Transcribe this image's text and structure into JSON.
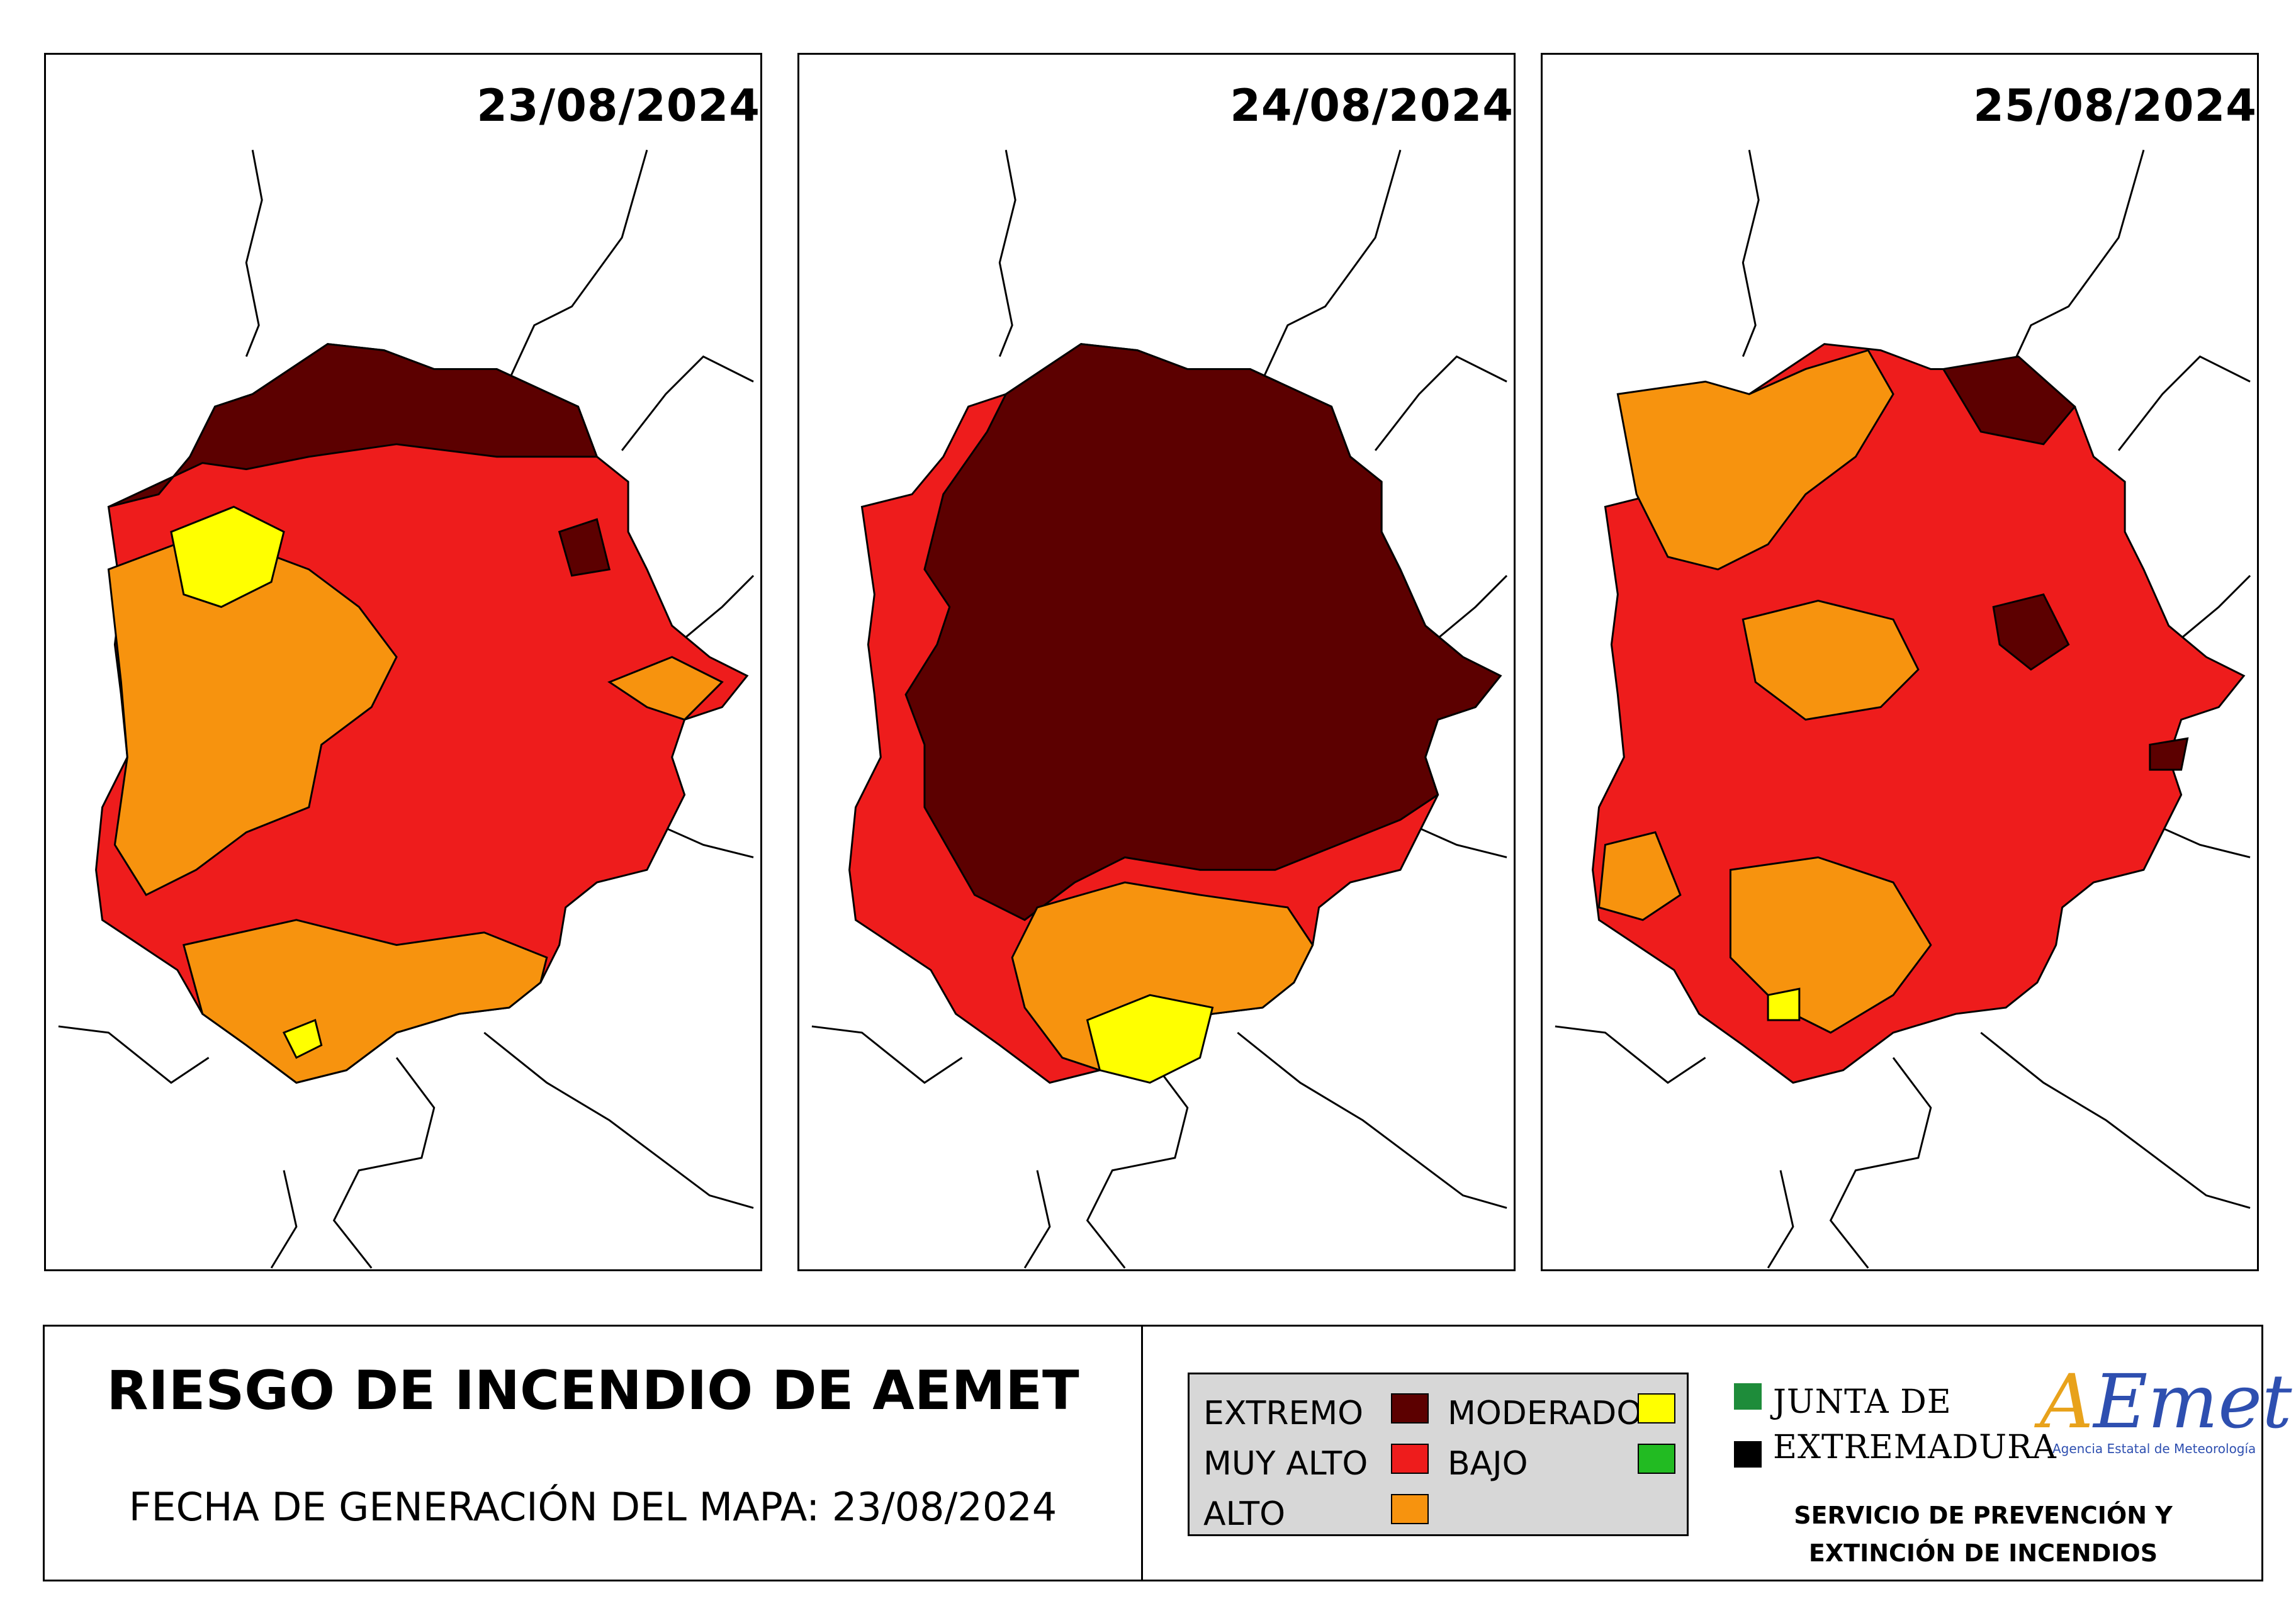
{
  "panels": [
    {
      "date": "23/08/2024"
    },
    {
      "date": "24/08/2024"
    },
    {
      "date": "25/08/2024"
    }
  ],
  "footer": {
    "title": "RIESGO DE INCENDIO DE AEMET",
    "generation_date": "FECHA DE GENERACIÓN DEL MAPA: 23/08/2024"
  },
  "legend": {
    "items": [
      {
        "label": "EXTREMO",
        "color": "#5c0000"
      },
      {
        "label": "MUY ALTO",
        "color": "#ee1c1c"
      },
      {
        "label": "ALTO",
        "color": "#f7930e"
      },
      {
        "label": "MODERADO",
        "color": "#ffff00"
      },
      {
        "label": "BAJO",
        "color": "#22bb22"
      }
    ]
  },
  "organization": {
    "line1": "JUNTA DE",
    "line2": "EXTREMADURA",
    "square_colors": [
      "#1e8c3a",
      "#000000"
    ]
  },
  "aemet_logo": {
    "mark_a": "A",
    "mark_rest": "Emet",
    "subtitle": "Agencia Estatal de Meteorología"
  },
  "service": {
    "line1": "SERVICIO DE PREVENCIÓN Y",
    "line2": "EXTINCIÓN DE INCENDIOS"
  }
}
